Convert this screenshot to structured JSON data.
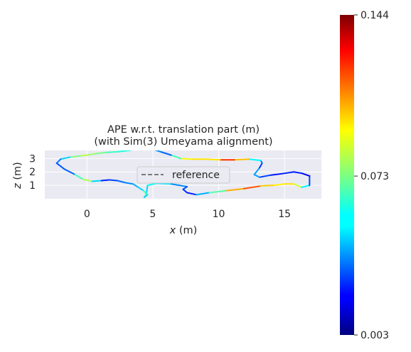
{
  "chart_data": {
    "type": "line",
    "title_line1": "APE w.r.t. translation part (m)",
    "title_line2": "(with Sim(3) Umeyama alignment)",
    "xlabel_var": "x",
    "xlabel_unit": " (m)",
    "ylabel_var": "z",
    "ylabel_unit": " (m)",
    "xlim": [
      -3.2,
      17.8
    ],
    "ylim": [
      0.0,
      3.6
    ],
    "xticks": [
      0,
      5,
      10,
      15
    ],
    "yticks": [
      1,
      2,
      3
    ],
    "grid": true,
    "legend": {
      "entry": "reference",
      "placement": "center",
      "style": "dashed"
    },
    "colorbar": {
      "min": 0.003,
      "max": 0.144,
      "ticks": [
        "0.144",
        "0.073",
        "0.003"
      ],
      "colormap": "jet"
    },
    "series": [
      {
        "name": "reference",
        "x": [
          4.5,
          4.6,
          5.3,
          6.4,
          7.6,
          7.3,
          7.6,
          8.3,
          9.3,
          10.6,
          11.9,
          13.2,
          14.2,
          15.0,
          15.7,
          16.3,
          16.9,
          16.9,
          16.3,
          15.7,
          14.7,
          13.9,
          13.1,
          12.7,
          13.1,
          13.3,
          13.2,
          12.3,
          11.2,
          10.1,
          9.0,
          7.9,
          7.1,
          6.4,
          5.6,
          4.7,
          3.9,
          3.2,
          2.3,
          1.4,
          0.6,
          0.0,
          -0.5,
          -1.3,
          -2.0,
          -2.3,
          -1.7,
          -0.9,
          -0.3,
          0.4,
          1.1,
          1.7,
          2.3,
          2.9,
          3.5,
          3.9,
          4.3,
          4.5,
          4.35,
          4.6
        ],
        "z": [
          0.25,
          1.0,
          1.15,
          1.1,
          0.9,
          0.7,
          0.45,
          0.3,
          0.45,
          0.6,
          0.75,
          0.95,
          1.0,
          1.1,
          1.1,
          0.85,
          1.0,
          1.7,
          1.9,
          2.0,
          1.85,
          1.75,
          1.6,
          1.8,
          2.3,
          2.65,
          2.85,
          2.95,
          2.9,
          2.9,
          2.95,
          2.95,
          3.0,
          3.25,
          3.5,
          3.8,
          3.75,
          3.6,
          3.5,
          3.45,
          3.35,
          3.25,
          3.2,
          3.1,
          2.95,
          2.65,
          2.2,
          1.8,
          1.45,
          1.3,
          1.35,
          1.4,
          1.35,
          1.2,
          1.1,
          0.85,
          0.6,
          0.35,
          0.1,
          0.3
        ],
        "ape": [
          0.04,
          0.06,
          0.055,
          0.05,
          0.03,
          0.035,
          0.02,
          0.03,
          0.06,
          0.075,
          0.13,
          0.1,
          0.095,
          0.09,
          0.1,
          0.07,
          0.04,
          0.02,
          0.02,
          0.03,
          0.02,
          0.025,
          0.035,
          0.05,
          0.035,
          0.02,
          0.05,
          0.06,
          0.14,
          0.1,
          0.09,
          0.1,
          0.08,
          0.05,
          0.02,
          0.06,
          0.05,
          0.06,
          0.06,
          0.07,
          0.075,
          0.08,
          0.085,
          0.06,
          0.04,
          0.035,
          0.03,
          0.04,
          0.09,
          0.07,
          0.03,
          0.02,
          0.04,
          0.03,
          0.05,
          0.04,
          0.06,
          0.075,
          0.06,
          0.04
        ]
      }
    ]
  }
}
